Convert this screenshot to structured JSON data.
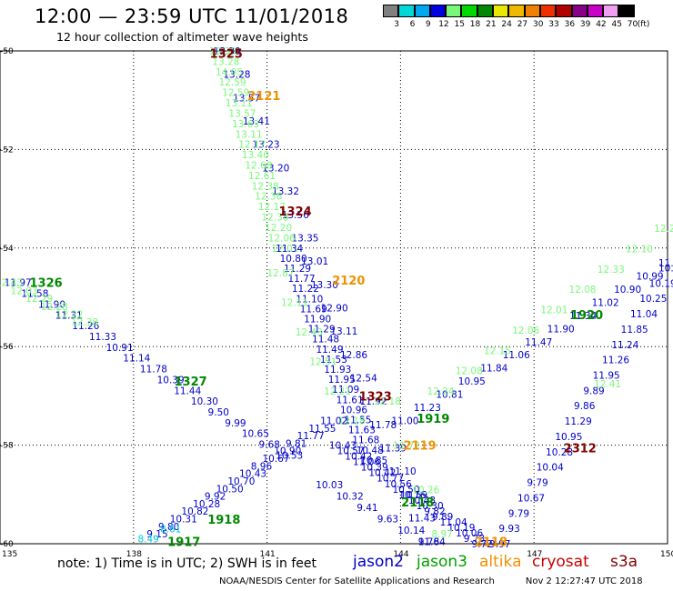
{
  "header": {
    "title": "12:00 — 23:59 UTC 11/01/2018",
    "subtitle": "12 hour collection of altimeter wave heights"
  },
  "colorbar": {
    "labels": [
      "3",
      "6",
      "9",
      "12",
      "15",
      "18",
      "21",
      "24",
      "27",
      "30",
      "33",
      "36",
      "39",
      "42",
      "45",
      "70"
    ],
    "unit": "(ft)",
    "colors": [
      "#808080",
      "#00d8d8",
      "#00a8f0",
      "#0000e0",
      "#78f878",
      "#00d800",
      "#008800",
      "#e8e800",
      "#f0b800",
      "#f08000",
      "#f03000",
      "#b00000",
      "#880088",
      "#c800c8",
      "#f0a0f0",
      "#000000"
    ]
  },
  "axes": {
    "x_ticks": [
      "135",
      "138",
      "141",
      "144",
      "147",
      "150"
    ],
    "y_ticks": [
      "-50",
      "-52",
      "-54",
      "-56",
      "-58",
      "-60"
    ]
  },
  "notes": {
    "text": "note: 1) Time is in UTC; 2) SWH is in feet"
  },
  "satellites": [
    {
      "name": "jason2",
      "color": "#0000c8"
    },
    {
      "name": "jason3",
      "color": "#00a000"
    },
    {
      "name": "altika",
      "color": "#f09000"
    },
    {
      "name": "cryosat",
      "color": "#c80000"
    },
    {
      "name": "s3a",
      "color": "#800000"
    }
  ],
  "footer": {
    "credit": "NOAA/NESDIS Center for Satellite Applications and Research",
    "timestamp": "Nov  2 12:27:47 UTC 2018"
  },
  "map_data": {
    "lon_range": [
      135,
      150
    ],
    "lat_range": [
      -60,
      -50
    ],
    "pass_labels": [
      {
        "text": "1325",
        "lon": 140.0,
        "lat": -50.05,
        "color": "#800000"
      },
      {
        "text": "2121",
        "lon": 140.85,
        "lat": -50.9,
        "color": "#f09000"
      },
      {
        "text": "1324",
        "lon": 141.55,
        "lat": -53.25,
        "color": "#800000"
      },
      {
        "text": "2120",
        "lon": 142.75,
        "lat": -54.65,
        "color": "#f09000"
      },
      {
        "text": "1323",
        "lon": 143.35,
        "lat": -57.0,
        "color": "#800000"
      },
      {
        "text": "2119",
        "lon": 144.35,
        "lat": -58.0,
        "color": "#f09000"
      },
      {
        "text": "1326",
        "lon": 135.95,
        "lat": -54.7,
        "color": "#008800"
      },
      {
        "text": "1327",
        "lon": 139.2,
        "lat": -56.7,
        "color": "#008800"
      },
      {
        "text": "1918",
        "lon": 139.95,
        "lat": -59.5,
        "color": "#008800"
      },
      {
        "text": "1917",
        "lon": 139.05,
        "lat": -59.95,
        "color": "#008800"
      },
      {
        "text": "1919",
        "lon": 144.65,
        "lat": -57.45,
        "color": "#008800"
      },
      {
        "text": "1920",
        "lon": 148.1,
        "lat": -55.35,
        "color": "#008800"
      },
      {
        "text": "2312",
        "lon": 147.95,
        "lat": -58.05,
        "color": "#800000"
      },
      {
        "text": "2118",
        "lon": 144.3,
        "lat": -59.15,
        "color": "#008800"
      },
      {
        "text": "2118",
        "lon": 145.95,
        "lat": -59.95,
        "color": "#f09000"
      }
    ],
    "tracks": [
      {
        "id": "pass-1325",
        "color": "#0000c8",
        "start": [
          140.0,
          -50.0
        ],
        "end": [
          144.6,
          -59.95
        ],
        "values": [
          "13.30",
          "13.28",
          "13.57",
          "13.41",
          "13.23",
          "13.20",
          "13.32",
          "13.56",
          "13.35",
          "13.01",
          "13.30",
          "12.90",
          "13.11",
          "12.86",
          "12.54",
          "11.92",
          "11.78",
          "11.39",
          "11.10",
          "10.76",
          "11.43",
          "11.64"
        ]
      },
      {
        "id": "pass-2121",
        "color": "#78f878",
        "start": [
          139.9,
          -50.0
        ],
        "end": [
          141.3,
          -54.0
        ],
        "values": [
          "13.30",
          "13.28",
          "14.05",
          "12.59",
          "12.59",
          "13.11",
          "13.57",
          "13.63",
          "13.11",
          "12.17",
          "13.40",
          "12.68",
          "12.61",
          "12.38",
          "12.36",
          "12.17",
          "12.38",
          "12.20",
          "12.06",
          "12.01"
        ]
      },
      {
        "id": "pass-1324",
        "color": "#0000c8",
        "start": [
          141.4,
          -54.0
        ],
        "end": [
          143.3,
          -58.3
        ],
        "values": [
          "11.34",
          "10.80",
          "11.29",
          "11.77",
          "11.22",
          "11.10",
          "11.69",
          "11.90",
          "11.29",
          "11.48",
          "11.49",
          "11.53",
          "11.93",
          "11.95",
          "11.09",
          "11.61",
          "10.96",
          "11.55",
          "11.63",
          "11.68",
          "10.48",
          "10.85"
        ]
      },
      {
        "id": "pass-2120",
        "color": "#78f878",
        "start": [
          141.2,
          -54.5
        ],
        "end": [
          142.8,
          -57.5
        ],
        "values": [
          "12.87",
          "12.11",
          "12.43",
          "12.51",
          "12.21",
          "12.18"
        ]
      },
      {
        "id": "pass-1326",
        "color": "#0000c8",
        "start": [
          135.3,
          -54.7
        ],
        "end": [
          141.4,
          -58.2
        ],
        "values": [
          "11.97",
          "11.58",
          "11.90",
          "11.31",
          "11.26",
          "11.33",
          "10.91",
          "11.14",
          "11.78",
          "10.39",
          "11.44",
          "10.30",
          "9.50",
          "9.99",
          "10.65",
          "9.68",
          "10.53"
        ]
      },
      {
        "id": "pass-1326g",
        "color": "#78f878",
        "start": [
          135.1,
          -54.7
        ],
        "end": [
          136.8,
          -55.5
        ],
        "values": [
          "12.43",
          "12.03",
          "12.29",
          "12.28",
          "12.22",
          "12.38"
        ]
      },
      {
        "id": "pass-1917",
        "color": "#0000c8",
        "start": [
          138.5,
          -59.8
        ],
        "end": [
          142.4,
          -57.5
        ],
        "values": [
          "9.15",
          "9.80",
          "10.31",
          "10.82",
          "10.28",
          "9.92",
          "10.50",
          "10.70",
          "10.43",
          "8.96",
          "10.67",
          "10.90",
          "9.81",
          "11.77",
          "11.55",
          "11.02"
        ]
      },
      {
        "id": "pass-1917g",
        "color": "#00c8d8",
        "start": [
          138.3,
          -59.9
        ],
        "end": [
          138.8,
          -59.7
        ],
        "values": [
          "8.49",
          "8.61"
        ]
      },
      {
        "id": "pass-1323",
        "color": "#0000c8",
        "start": [
          142.6,
          -58.0
        ],
        "end": [
          145.8,
          -60.0
        ],
        "values": [
          "10.43",
          "10.57",
          "10.42",
          "11.06",
          "10.39",
          "10.42",
          "10.77",
          "10.56",
          "10.50",
          "10.59",
          "10.48",
          "10.30",
          "9.82",
          "9.89",
          "11.04",
          "10.19",
          "10.06",
          "9.73",
          "9.72"
        ]
      },
      {
        "id": "pass-1323b",
        "color": "#0000c8",
        "start": [
          142.3,
          -58.8
        ],
        "end": [
          144.6,
          -59.95
        ],
        "values": [
          "10.03",
          "10.32",
          "9.41",
          "9.63",
          "10.14",
          "9.78"
        ]
      },
      {
        "id": "pass-1919",
        "color": "#0000c8",
        "start": [
          144.0,
          -57.5
        ],
        "end": [
          150.0,
          -54.3
        ],
        "values": [
          "11.00",
          "11.23",
          "10.81",
          "10.95",
          "11.84",
          "11.06",
          "11.47",
          "11.90",
          "11.34",
          "11.02",
          "10.90",
          "10.99",
          "11.10"
        ]
      },
      {
        "id": "pass-1919g",
        "color": "#78f878",
        "start": [
          144.8,
          -56.9
        ],
        "end": [
          149.9,
          -53.6
        ],
        "values": [
          "12.24",
          "12.08",
          "12.15",
          "12.06",
          "12.01",
          "12.08",
          "12.33",
          "12.10",
          "12.20"
        ]
      },
      {
        "id": "pass-2312",
        "color": "#0000c8",
        "start": [
          146.2,
          -60.0
        ],
        "end": [
          150.0,
          -54.4
        ],
        "values": [
          "9.97",
          "9.93",
          "9.79",
          "10.67",
          "9.79",
          "10.04",
          "10.28",
          "10.95",
          "11.29",
          "9.86",
          "9.89",
          "11.95",
          "11.26",
          "11.24",
          "11.85",
          "11.04",
          "10.25",
          "10.19",
          "10.04"
        ]
      },
      {
        "id": "pass-2312g",
        "color": "#78f878",
        "start": [
          148.55,
          -56.75
        ],
        "end": [
          148.55,
          -56.75
        ],
        "values": [
          "12.41"
        ]
      },
      {
        "id": "pass-1918g",
        "color": "#78f878",
        "start": [
          143.6,
          -57.1
        ],
        "end": [
          144.9,
          -59.8
        ],
        "values": [
          "12.18",
          "11.72",
          "10.26",
          "8.97"
        ]
      }
    ]
  }
}
